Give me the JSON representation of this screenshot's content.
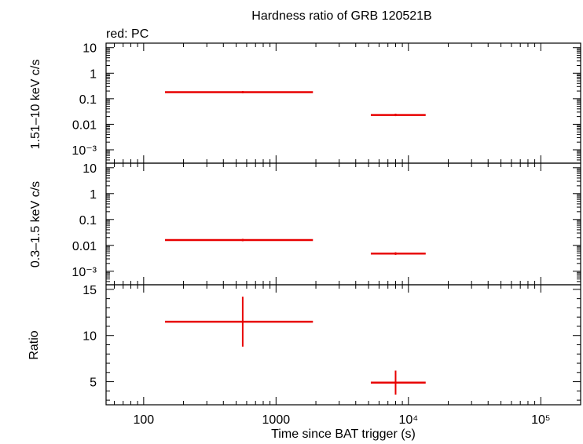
{
  "title": "Hardness ratio of GRB 120521B",
  "legend_label": "red: PC",
  "chart_data": [
    {
      "panel": "hard",
      "type": "scatter",
      "ylabel": "1.51–10 keV c/s",
      "yscale": "log",
      "ylim": [
        0.0003,
        15
      ],
      "y_ticks": [
        "10",
        "1",
        "0.1",
        "0.01",
        "10⁻³"
      ],
      "series": [
        {
          "color": "#e80000",
          "points": [
            {
              "x": 560,
              "xlo": 145,
              "xhi": 1900,
              "y": 0.18,
              "ylo": 0.17,
              "yhi": 0.19
            },
            {
              "x": 8000,
              "xlo": 5200,
              "xhi": 13500,
              "y": 0.023,
              "ylo": 0.021,
              "yhi": 0.026
            }
          ]
        }
      ]
    },
    {
      "panel": "soft",
      "type": "scatter",
      "ylabel": "0.3–1.5 keV c/s",
      "yscale": "log",
      "ylim": [
        0.0003,
        15
      ],
      "y_ticks": [
        "10",
        "1",
        "0.1",
        "0.01",
        "10⁻³"
      ],
      "series": [
        {
          "color": "#e80000",
          "points": [
            {
              "x": 560,
              "xlo": 145,
              "xhi": 1900,
              "y": 0.016,
              "ylo": 0.0145,
              "yhi": 0.0178
            },
            {
              "x": 8000,
              "xlo": 5200,
              "xhi": 13500,
              "y": 0.0048,
              "ylo": 0.0043,
              "yhi": 0.0054
            }
          ]
        }
      ]
    },
    {
      "panel": "ratio",
      "type": "scatter",
      "ylabel": "Ratio",
      "xlabel": "Time since BAT trigger (s)",
      "xscale": "log",
      "xlim": [
        52,
        200000
      ],
      "yscale": "linear",
      "ylim": [
        2.5,
        15.5
      ],
      "y_ticks": [
        "15",
        "10",
        "5"
      ],
      "x_ticks": [
        "100",
        "1000",
        "10⁴",
        "10⁵"
      ],
      "series": [
        {
          "color": "#e80000",
          "points": [
            {
              "x": 560,
              "xlo": 145,
              "xhi": 1900,
              "y": 11.5,
              "ylo": 8.8,
              "yhi": 14.2
            },
            {
              "x": 8000,
              "xlo": 5200,
              "xhi": 13500,
              "y": 4.9,
              "ylo": 3.6,
              "yhi": 6.2
            }
          ]
        }
      ]
    }
  ]
}
